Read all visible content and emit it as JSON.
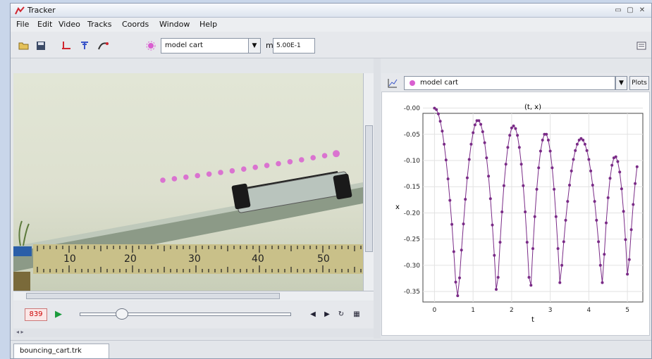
{
  "window": {
    "title": "Tracker"
  },
  "menu": {
    "items": [
      "File",
      "Edit",
      "Video",
      "Tracks",
      "Coords",
      "Window",
      "Help"
    ]
  },
  "toolbar": {
    "icons": [
      "open-icon",
      "save-icon",
      "axes-icon",
      "calibration-icon",
      "trail-icon",
      "track-icon"
    ],
    "track_name": "model cart",
    "mass_label": "m",
    "mass_value": "5.00E-1"
  },
  "player": {
    "frame": "839",
    "slider_fraction": 0.2
  },
  "video": {
    "ruler_labels": [
      "10",
      "20",
      "30",
      "40",
      "50"
    ],
    "track_color": "#d95fd0"
  },
  "plot_panel": {
    "track_name": "model cart",
    "plots_button": "Plots"
  },
  "chart_data": {
    "type": "scatter",
    "title": "(t, x)",
    "xlabel": "t",
    "ylabel": "x",
    "xlim": [
      -0.3,
      5.4
    ],
    "ylim": [
      -0.37,
      -0.01
    ],
    "xticks": [
      "0",
      "1",
      "2",
      "3",
      "4",
      "5"
    ],
    "yticks": [
      "-0.00",
      "-0.05",
      "-0.10",
      "-0.15",
      "-0.20",
      "-0.25",
      "-0.30",
      "-0.35"
    ],
    "series_color": "#7a2b87",
    "series": [
      {
        "t": [
          0.0,
          0.05,
          0.1,
          0.15,
          0.2,
          0.25,
          0.3,
          0.35,
          0.4,
          0.45,
          0.5,
          0.55,
          0.6,
          0.65,
          0.7,
          0.75,
          0.8,
          0.85,
          0.9,
          0.95,
          1.0,
          1.05,
          1.1,
          1.15,
          1.2,
          1.25,
          1.3,
          1.35,
          1.4,
          1.45,
          1.5,
          1.55,
          1.6,
          1.65,
          1.7,
          1.75,
          1.8,
          1.85,
          1.9,
          1.95,
          2.0,
          2.05,
          2.1,
          2.15,
          2.2,
          2.25,
          2.3,
          2.35,
          2.4,
          2.45,
          2.5,
          2.55,
          2.6,
          2.65,
          2.7,
          2.75,
          2.8,
          2.85,
          2.9,
          2.95,
          3.0,
          3.05,
          3.1,
          3.15,
          3.2,
          3.25,
          3.3,
          3.35,
          3.4,
          3.45,
          3.5,
          3.55,
          3.6,
          3.65,
          3.7,
          3.75,
          3.8,
          3.85,
          3.9,
          3.95,
          4.0,
          4.05,
          4.1,
          4.15,
          4.2,
          4.25,
          4.3,
          4.35,
          4.4,
          4.45,
          4.5,
          4.55,
          4.6,
          4.65,
          4.7,
          4.75,
          4.8,
          4.85,
          4.9,
          4.95,
          5.0,
          5.05,
          5.1,
          5.15,
          5.2,
          5.25
        ],
        "x": [
          -0.0,
          -0.003,
          -0.011,
          -0.025,
          -0.044,
          -0.069,
          -0.099,
          -0.135,
          -0.176,
          -0.222,
          -0.274,
          -0.332,
          -0.358,
          -0.324,
          -0.271,
          -0.221,
          -0.174,
          -0.133,
          -0.098,
          -0.069,
          -0.047,
          -0.032,
          -0.024,
          -0.024,
          -0.031,
          -0.045,
          -0.066,
          -0.095,
          -0.13,
          -0.173,
          -0.223,
          -0.281,
          -0.346,
          -0.323,
          -0.256,
          -0.198,
          -0.148,
          -0.107,
          -0.075,
          -0.052,
          -0.038,
          -0.034,
          -0.039,
          -0.052,
          -0.075,
          -0.107,
          -0.148,
          -0.198,
          -0.256,
          -0.323,
          -0.338,
          -0.268,
          -0.207,
          -0.155,
          -0.114,
          -0.082,
          -0.061,
          -0.05,
          -0.05,
          -0.061,
          -0.082,
          -0.114,
          -0.155,
          -0.207,
          -0.268,
          -0.333,
          -0.3,
          -0.255,
          -0.214,
          -0.178,
          -0.147,
          -0.12,
          -0.098,
          -0.081,
          -0.069,
          -0.061,
          -0.058,
          -0.061,
          -0.069,
          -0.081,
          -0.098,
          -0.12,
          -0.147,
          -0.178,
          -0.214,
          -0.255,
          -0.3,
          -0.333,
          -0.279,
          -0.219,
          -0.171,
          -0.134,
          -0.109,
          -0.095,
          -0.093,
          -0.102,
          -0.122,
          -0.154,
          -0.197,
          -0.251,
          -0.317,
          -0.289,
          -0.232,
          -0.184,
          -0.144,
          -0.112
        ]
      }
    ]
  }
}
